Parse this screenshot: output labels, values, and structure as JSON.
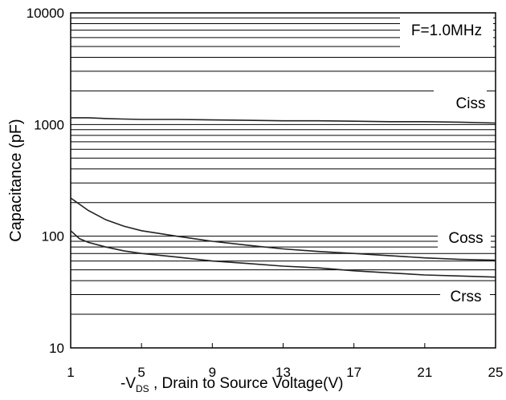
{
  "chart_data": {
    "type": "line",
    "ylabel": "Capacitance (pF)",
    "xlabel_prefix": "-V",
    "xlabel_sub": "DS",
    "xlabel_suffix": " , Drain to Source Voltage(V)",
    "annotation": "F=1.0MHz",
    "y_scale": "log",
    "ylim": [
      10,
      10000
    ],
    "xlim": [
      1,
      25
    ],
    "x_ticks": [
      1,
      5,
      9,
      13,
      17,
      21,
      25
    ],
    "y_ticks": [
      {
        "value": 10,
        "label": "10"
      },
      {
        "value": 100,
        "label": "100"
      },
      {
        "value": 1000,
        "label": "1000"
      },
      {
        "value": 10000,
        "label": "10000"
      }
    ],
    "grid": "horizontal",
    "series": [
      {
        "name": "Ciss",
        "x": [
          1,
          2,
          3,
          4,
          5,
          7,
          9,
          11,
          13,
          15,
          17,
          19,
          21,
          23,
          25
        ],
        "y": [
          1150,
          1150,
          1130,
          1120,
          1110,
          1110,
          1100,
          1090,
          1080,
          1080,
          1070,
          1060,
          1060,
          1050,
          1030
        ]
      },
      {
        "name": "Coss",
        "x": [
          1,
          2,
          3,
          4,
          5,
          7,
          9,
          11,
          13,
          15,
          17,
          19,
          21,
          23,
          25
        ],
        "y": [
          220,
          170,
          140,
          123,
          112,
          100,
          90,
          83,
          77,
          73,
          70,
          67,
          64,
          62,
          61
        ]
      },
      {
        "name": "Crss",
        "x": [
          1,
          1.5,
          2,
          3,
          4,
          5,
          7,
          9,
          11,
          13,
          15,
          17,
          19,
          21,
          23,
          25
        ],
        "y": [
          112,
          95,
          88,
          80,
          74,
          70,
          65,
          60,
          57,
          54,
          52,
          49,
          47,
          45,
          44,
          43
        ]
      }
    ]
  }
}
